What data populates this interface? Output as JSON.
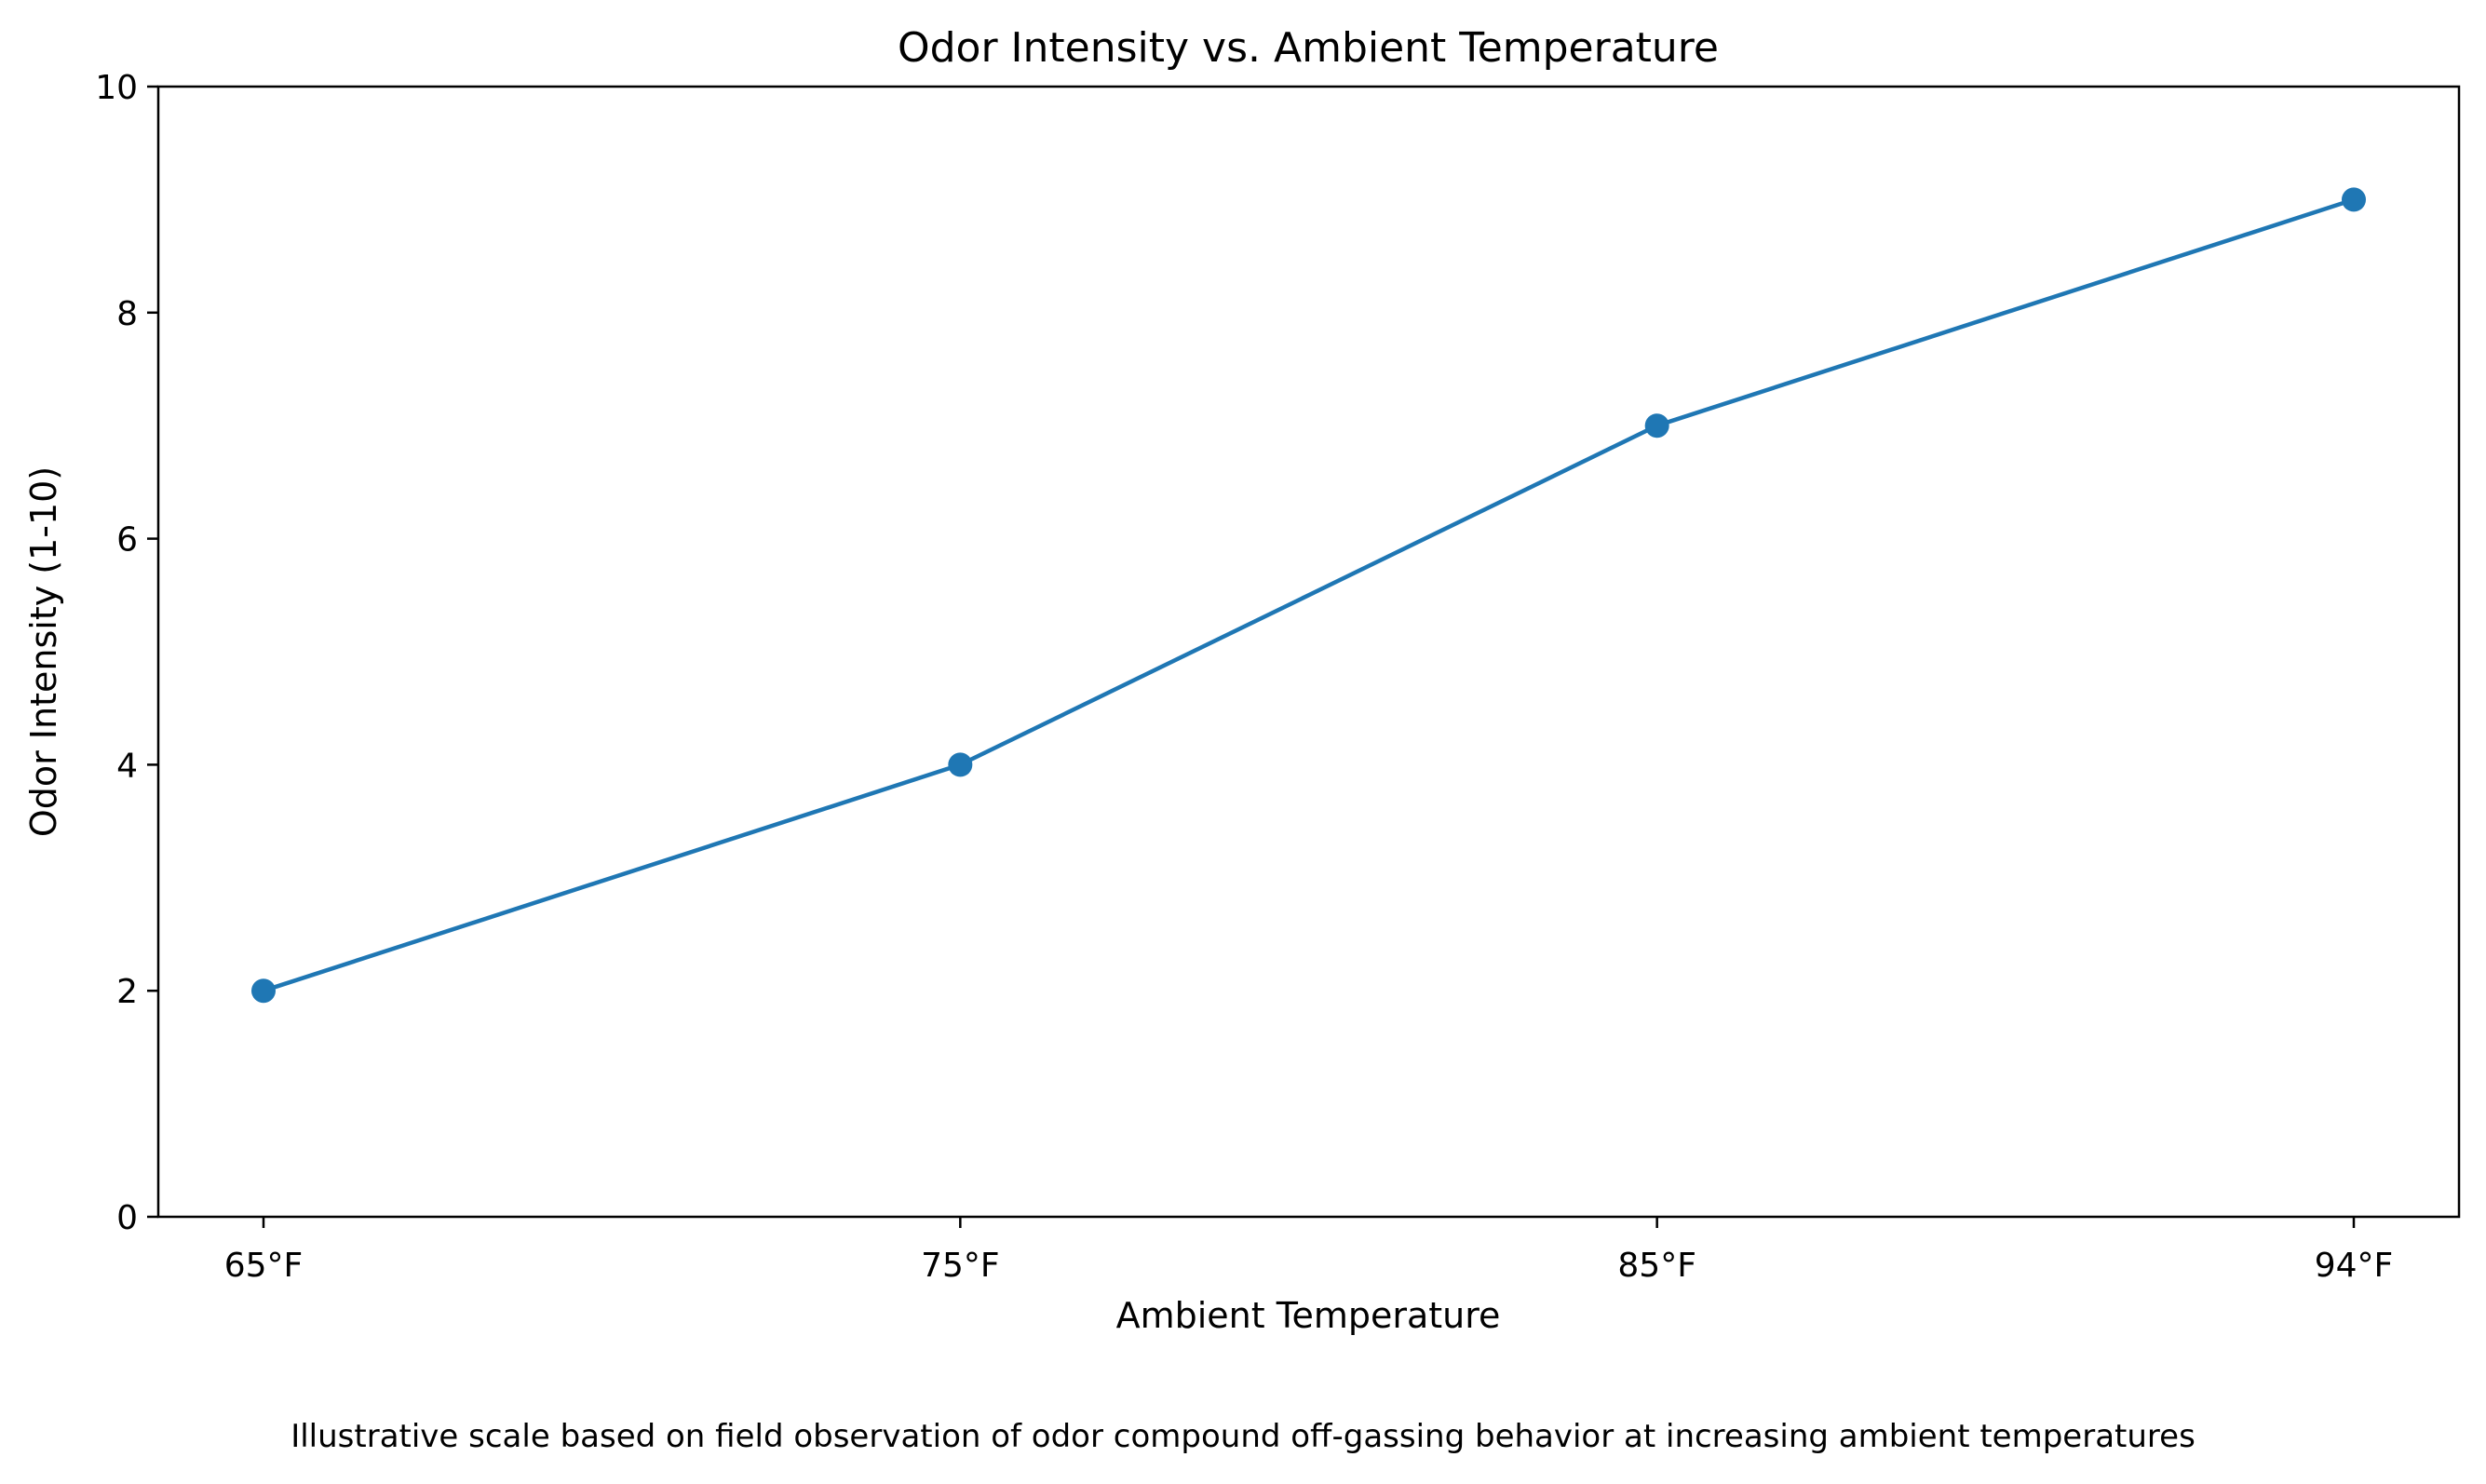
{
  "chart_data": {
    "type": "line",
    "title": "Odor Intensity vs. Ambient Temperature",
    "xlabel": "Ambient Temperature",
    "ylabel": "Odor Intensity (1-10)",
    "categories": [
      "65°F",
      "75°F",
      "85°F",
      "94°F"
    ],
    "values": [
      2,
      4,
      7,
      9
    ],
    "ylim": [
      0,
      10
    ],
    "yticks": [
      "0",
      "2",
      "4",
      "6",
      "8",
      "10"
    ],
    "grid": false,
    "legend": "none",
    "series_color": "#1f77b4",
    "markers": "circle"
  },
  "caption": "Illustrative scale based on field observation of odor compound off-gassing behavior at increasing ambient temperatures"
}
